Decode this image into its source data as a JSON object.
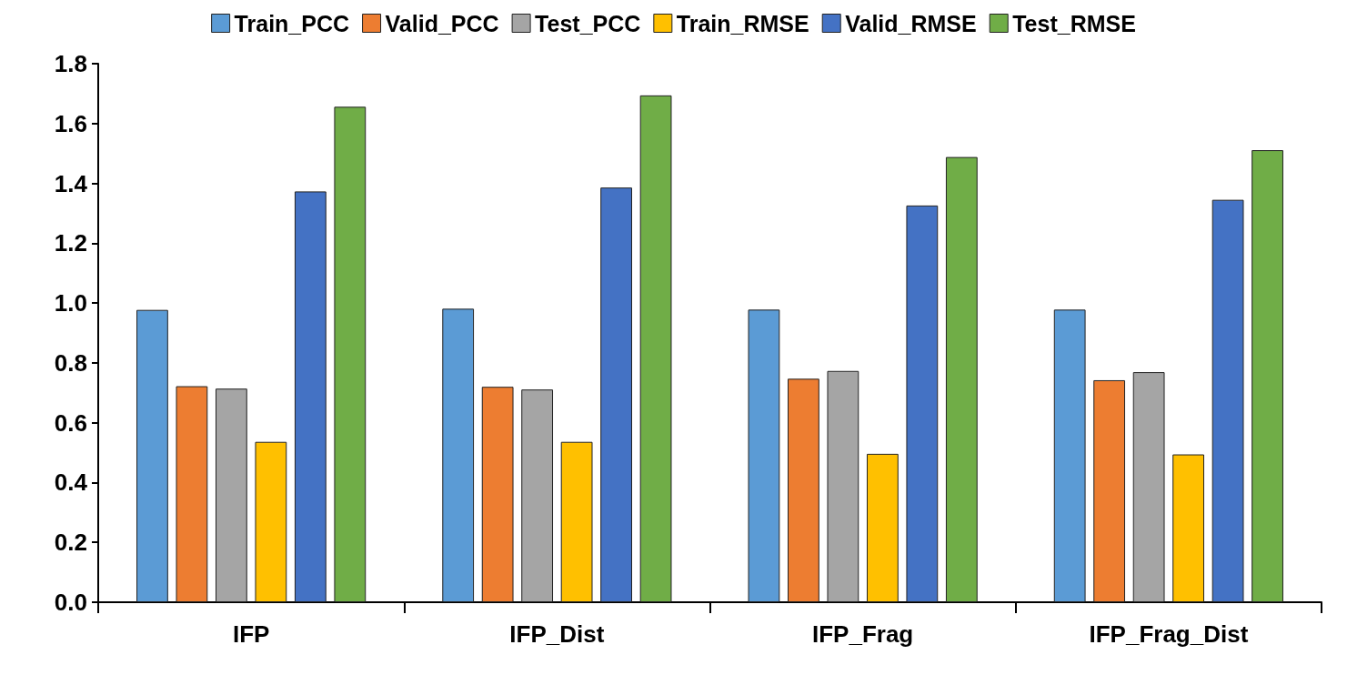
{
  "chart_data": {
    "type": "bar",
    "categories": [
      "IFP",
      "IFP_Dist",
      "IFP_Frag",
      "IFP_Frag_Dist"
    ],
    "series": [
      {
        "name": "Train_PCC",
        "color": "#5b9bd5",
        "values": [
          0.977,
          0.981,
          0.978,
          0.978
        ]
      },
      {
        "name": "Valid_PCC",
        "color": "#ed7d31",
        "values": [
          0.722,
          0.72,
          0.747,
          0.742
        ]
      },
      {
        "name": "Test_PCC",
        "color": "#a5a5a5",
        "values": [
          0.714,
          0.711,
          0.773,
          0.769
        ]
      },
      {
        "name": "Train_RMSE",
        "color": "#ffc000",
        "values": [
          0.536,
          0.536,
          0.496,
          0.494
        ]
      },
      {
        "name": "Valid_RMSE",
        "color": "#4472c4",
        "values": [
          1.373,
          1.386,
          1.326,
          1.345
        ]
      },
      {
        "name": "Test_RMSE",
        "color": "#70ad47",
        "values": [
          1.656,
          1.694,
          1.488,
          1.511
        ]
      }
    ],
    "ylim": [
      0,
      1.8
    ],
    "yticks": [
      {
        "value": 0,
        "label": "0.0"
      },
      0.2,
      0.4,
      0.6,
      0.8,
      {
        "value": 1,
        "label": "1.0"
      },
      1.2,
      1.4,
      1.6,
      1.8
    ],
    "grid": false,
    "legend": "top"
  }
}
